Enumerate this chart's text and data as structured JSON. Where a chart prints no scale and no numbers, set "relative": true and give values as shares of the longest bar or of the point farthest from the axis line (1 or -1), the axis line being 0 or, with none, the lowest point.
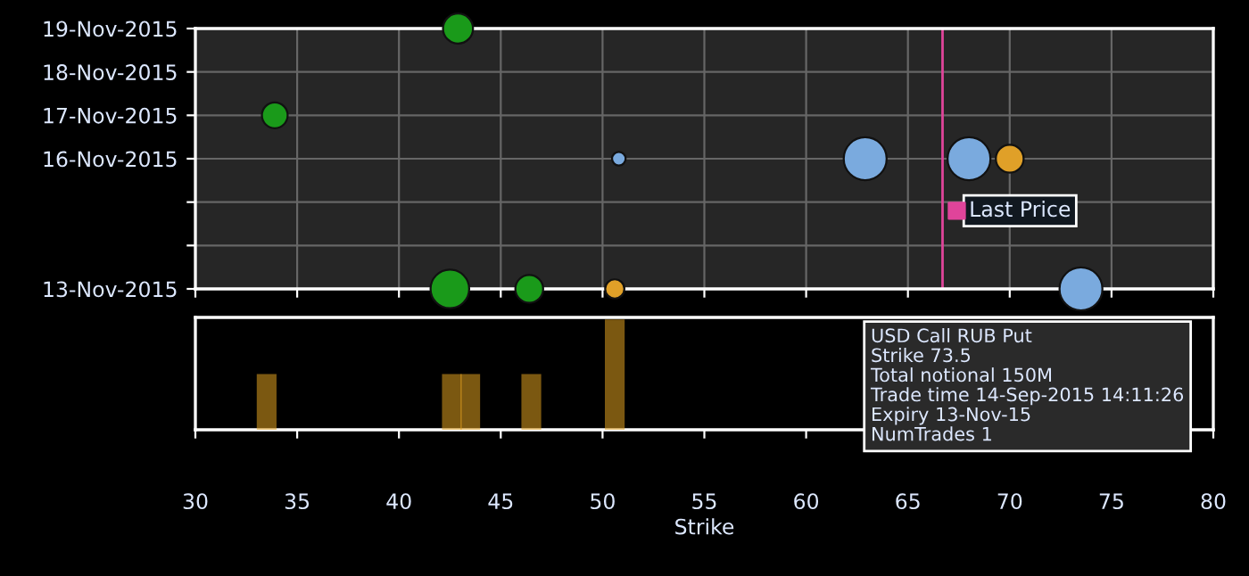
{
  "chart_data": [
    {
      "type": "bubble",
      "tick_labels": "y",
      "grid": true,
      "orientation": "horizontal",
      "categories": [
        "19-Nov-2015",
        "18-Nov-2015",
        "17-Nov-2015",
        "16-Nov-2015",
        null,
        null,
        "13-Nov-2015"
      ],
      "xlim": [
        30,
        80
      ],
      "xticks": [
        30,
        35,
        40,
        45,
        50,
        55,
        60,
        65,
        70,
        75,
        80
      ],
      "series": [
        {
          "color": "#1a9a1a",
          "values": [
            42.9,
            null,
            33.9,
            null,
            null,
            null,
            42.5
          ],
          "sizes": [
            0.49,
            null,
            0.36,
            null,
            null,
            null,
            0.81
          ]
        },
        {
          "color": "#1a9a1a",
          "values": [
            null,
            null,
            null,
            null,
            null,
            null,
            46.4
          ],
          "sizes": [
            null,
            null,
            null,
            null,
            null,
            null,
            0.42
          ]
        },
        {
          "color": "#7aaade",
          "values": [
            null,
            null,
            null,
            50.8,
            null,
            null,
            73.5
          ],
          "sizes": [
            null,
            null,
            null,
            0.1,
            null,
            null,
            1
          ]
        },
        {
          "color": "#7aaade",
          "values": [
            null,
            null,
            null,
            62.9,
            null,
            null,
            null
          ],
          "sizes": [
            null,
            null,
            null,
            1,
            null,
            null,
            null
          ]
        },
        {
          "color": "#7aaade",
          "values": [
            null,
            null,
            null,
            68.0,
            null,
            null,
            null
          ],
          "sizes": [
            null,
            null,
            null,
            1,
            null,
            null,
            null
          ]
        },
        {
          "color": "#e0a028",
          "values": [
            null,
            null,
            null,
            70.0,
            null,
            null,
            50.6
          ],
          "sizes": [
            null,
            null,
            null,
            0.42,
            null,
            null,
            0.2
          ]
        }
      ],
      "ref_lines": [
        {
          "axis": "x",
          "value": 66.7,
          "label": "Last Price",
          "color": "#e0449a"
        }
      ]
    },
    {
      "type": "bar",
      "relative": true,
      "tick_labels": "x",
      "xlabel": "Strike",
      "xlim": [
        30,
        80
      ],
      "xticks": [
        30,
        35,
        40,
        45,
        50,
        55,
        60,
        65,
        70,
        75,
        80
      ],
      "x": [
        33.5,
        42.6,
        43.5,
        46.5,
        50.6
      ],
      "values": [
        0.5,
        0.5,
        0.5,
        0.5,
        1
      ],
      "color": "#e0a020",
      "annotations": [
        "USD Call RUB Put",
        "Strike 73.5",
        "Total notional 150M",
        "Trade time 14-Sep-2015 14:11:26",
        "Expiry 13-Nov-15",
        "NumTrades 1"
      ]
    }
  ]
}
